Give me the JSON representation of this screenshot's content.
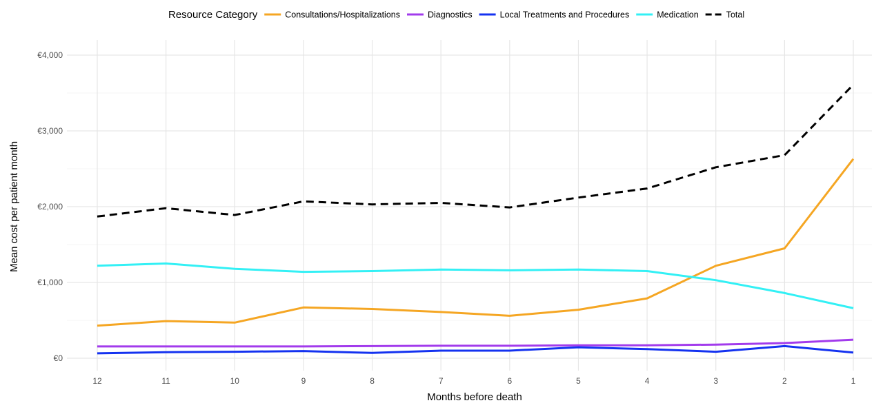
{
  "chart_data": {
    "type": "line",
    "title": "",
    "xlabel": "Months before death",
    "ylabel": "Mean cost per patient month",
    "x": [
      12,
      11,
      10,
      9,
      8,
      7,
      6,
      5,
      4,
      3,
      2,
      1
    ],
    "x_tick_labels": [
      "12",
      "11",
      "10",
      "9",
      "8",
      "7",
      "6",
      "5",
      "4",
      "3",
      "2",
      "1"
    ],
    "x_reversed": true,
    "ylim": [
      0,
      4000
    ],
    "y_ticks": [
      0,
      1000,
      2000,
      3000,
      4000
    ],
    "y_tick_labels": [
      "€0",
      "€1,000",
      "€2,000",
      "€3,000",
      "€4,000"
    ],
    "grid": true,
    "legend": {
      "title": "Resource Category",
      "position": "top"
    },
    "series": [
      {
        "name": "Consultations/Hospitalizations",
        "color": "#F5A623",
        "dashed": false,
        "values": [
          430,
          490,
          470,
          670,
          650,
          610,
          560,
          640,
          790,
          1220,
          1450,
          2630
        ]
      },
      {
        "name": "Diagnostics",
        "color": "#A23BEC",
        "dashed": false,
        "values": [
          155,
          155,
          155,
          155,
          160,
          165,
          165,
          170,
          170,
          180,
          200,
          245
        ]
      },
      {
        "name": "Local Treatments and Procedures",
        "color": "#1432F0",
        "dashed": false,
        "values": [
          65,
          80,
          85,
          95,
          70,
          100,
          100,
          145,
          120,
          85,
          160,
          75
        ]
      },
      {
        "name": "Medication",
        "color": "#33F0F5",
        "dashed": false,
        "values": [
          1220,
          1250,
          1180,
          1140,
          1150,
          1170,
          1160,
          1170,
          1150,
          1030,
          860,
          660
        ]
      },
      {
        "name": "Total",
        "color": "#000000",
        "dashed": true,
        "values": [
          1870,
          1980,
          1890,
          2070,
          2030,
          2050,
          1990,
          2120,
          2240,
          2520,
          2680,
          3610
        ]
      }
    ]
  }
}
